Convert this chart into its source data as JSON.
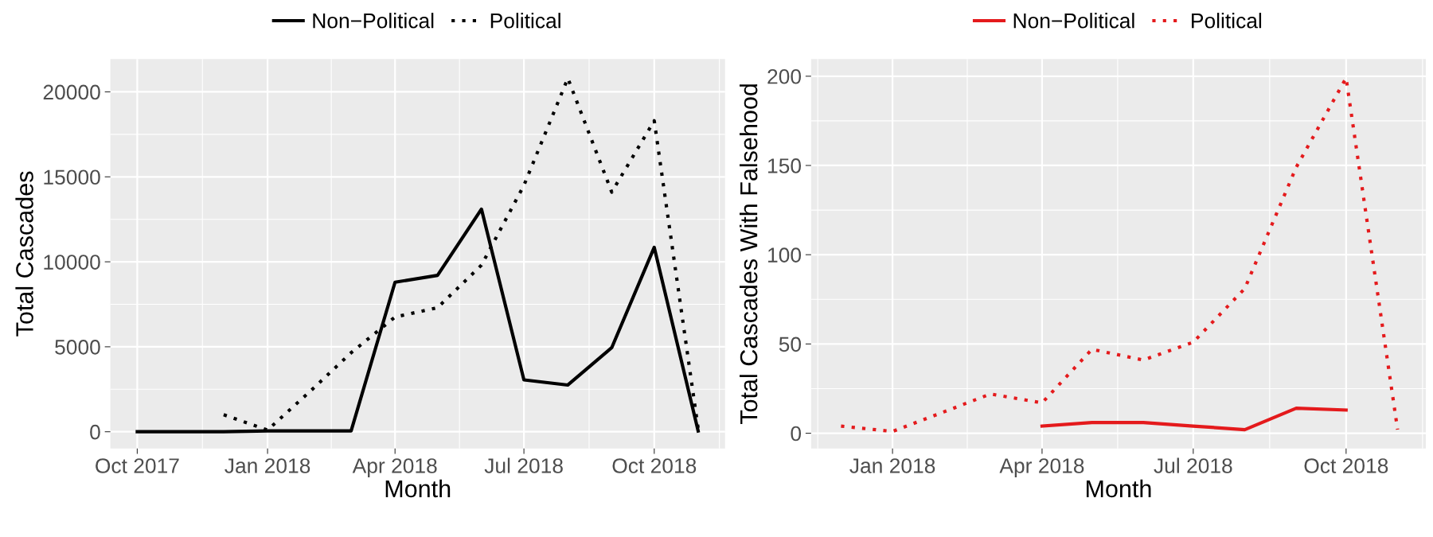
{
  "chart_data": [
    {
      "type": "line",
      "xlabel": "Month",
      "ylabel": "Total Cascades",
      "legend": "top",
      "grid": true,
      "xlim": [
        "2017-09-12",
        "2018-11-20"
      ],
      "ylim": [
        -980,
        21930
      ],
      "xticks": [
        {
          "value": "2017-10-01",
          "label": "Oct 2017"
        },
        {
          "value": "2018-01-01",
          "label": "Jan 2018"
        },
        {
          "value": "2018-04-01",
          "label": "Apr 2018"
        },
        {
          "value": "2018-07-01",
          "label": "Jul 2018"
        },
        {
          "value": "2018-10-01",
          "label": "Oct 2018"
        }
      ],
      "yticks": [
        0,
        5000,
        10000,
        15000,
        20000
      ],
      "series": [
        {
          "name": "Non−Political",
          "color": "#000000",
          "line_style": "solid",
          "x": [
            "2017-10-01",
            "2017-11-01",
            "2017-12-01",
            "2018-01-01",
            "2018-02-01",
            "2018-03-01",
            "2018-04-01",
            "2018-05-01",
            "2018-06-01",
            "2018-07-01",
            "2018-08-01",
            "2018-09-01",
            "2018-10-01",
            "2018-11-01"
          ],
          "values": [
            0,
            0,
            0,
            50,
            50,
            50,
            8800,
            9200,
            13100,
            3050,
            2750,
            4950,
            10850,
            50
          ]
        },
        {
          "name": "Political",
          "color": "#000000",
          "line_style": "dotted",
          "x": [
            "2017-12-01",
            "2018-01-01",
            "2018-02-01",
            "2018-03-01",
            "2018-04-01",
            "2018-05-01",
            "2018-06-01",
            "2018-07-01",
            "2018-08-01",
            "2018-09-01",
            "2018-10-01",
            "2018-11-01"
          ],
          "values": [
            1000,
            100,
            2450,
            4650,
            6750,
            7300,
            9800,
            14500,
            20800,
            14100,
            18300,
            200
          ]
        }
      ]
    },
    {
      "type": "line",
      "xlabel": "Month",
      "ylabel": "Total Cascades With Falsehood",
      "legend": "top",
      "grid": true,
      "xlim": [
        "2017-11-13",
        "2018-11-18"
      ],
      "ylim": [
        -8.5,
        209.6
      ],
      "xticks": [
        {
          "value": "2018-01-01",
          "label": "Jan 2018"
        },
        {
          "value": "2018-04-01",
          "label": "Apr 2018"
        },
        {
          "value": "2018-07-01",
          "label": "Jul 2018"
        },
        {
          "value": "2018-10-01",
          "label": "Oct 2018"
        }
      ],
      "yticks": [
        0,
        50,
        100,
        150,
        200
      ],
      "series": [
        {
          "name": "Non−Political",
          "color": "#e41a1c",
          "line_style": "solid",
          "x": [
            "2018-04-01",
            "2018-05-01",
            "2018-06-01",
            "2018-07-01",
            "2018-08-01",
            "2018-09-01",
            "2018-10-01"
          ],
          "values": [
            4,
            6,
            6,
            4,
            2,
            14,
            13
          ]
        },
        {
          "name": "Political",
          "color": "#e41a1c",
          "line_style": "dotted",
          "x": [
            "2017-12-01",
            "2018-01-01",
            "2018-02-01",
            "2018-03-01",
            "2018-04-01",
            "2018-05-01",
            "2018-06-01",
            "2018-07-01",
            "2018-08-01",
            "2018-09-01",
            "2018-10-01",
            "2018-11-01"
          ],
          "values": [
            4,
            1,
            12,
            22,
            17,
            47,
            41,
            51,
            81,
            149,
            199,
            2
          ]
        }
      ]
    }
  ]
}
